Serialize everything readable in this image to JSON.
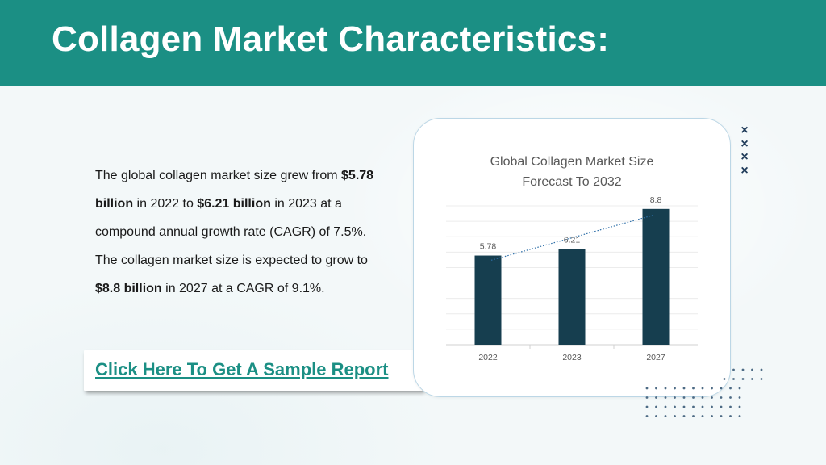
{
  "header": {
    "title": "Collagen Market Characteristics:"
  },
  "body": {
    "paragraph": [
      {
        "text": "The global collagen market size grew from ",
        "bold": false
      },
      {
        "text": "$5.78 billion",
        "bold": true
      },
      {
        "text": " in 2022 to ",
        "bold": false
      },
      {
        "text": "$6.21 billion",
        "bold": true
      },
      {
        "text": " in 2023 at a compound annual growth rate (CAGR) of 7.5%.  The collagen market size is expected to grow to ",
        "bold": false
      },
      {
        "text": "$8.8 billion",
        "bold": true
      },
      {
        "text": " in 2027 at a CAGR of 9.1%.",
        "bold": false
      }
    ],
    "cta_label": "Click Here To Get A Sample Report"
  },
  "colors": {
    "header": "#1b8f84",
    "bar": "#163e4f",
    "trendline": "#2e6fa8",
    "link": "#1b8f84",
    "decor": "#1f3b59"
  },
  "decor": {
    "x_mark": "×",
    "x_mark_count": 4,
    "icon": "dot-grid"
  },
  "chart_data": {
    "type": "bar",
    "title_lines": [
      "Global Collagen Market Size",
      "Forecast To 2032"
    ],
    "categories": [
      "2022",
      "2023",
      "2027"
    ],
    "values": [
      5.78,
      6.21,
      8.8
    ],
    "data_labels": [
      "5.78",
      "6.21",
      "8.8"
    ],
    "trendline": "linear-dotted",
    "ylim": [
      0,
      9
    ],
    "grid": true,
    "legend": "none",
    "xlabel": "",
    "ylabel": ""
  }
}
